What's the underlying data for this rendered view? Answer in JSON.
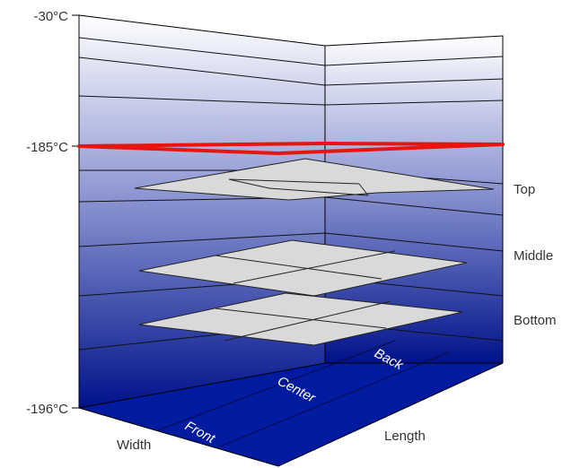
{
  "chart_data": {
    "type": "3d-surface",
    "title": "",
    "y_axis": {
      "min": -196,
      "max": -30,
      "tick_labels": [
        "-30°C",
        "-185°C",
        "-196°C"
      ],
      "nonlinear_scale": true
    },
    "x_axis_label": "Width",
    "z_axis_label": "Length",
    "floor_labels": [
      "Front",
      "Center",
      "Back"
    ],
    "layer_labels": [
      "Top",
      "Middle",
      "Bottom"
    ],
    "reference_line": {
      "value": -185,
      "color": "#e8140e"
    },
    "gradient_colors": {
      "top": "#ffffff",
      "bottom": "#00128a"
    },
    "surface_color": "#d9d9d9",
    "grid": true
  }
}
